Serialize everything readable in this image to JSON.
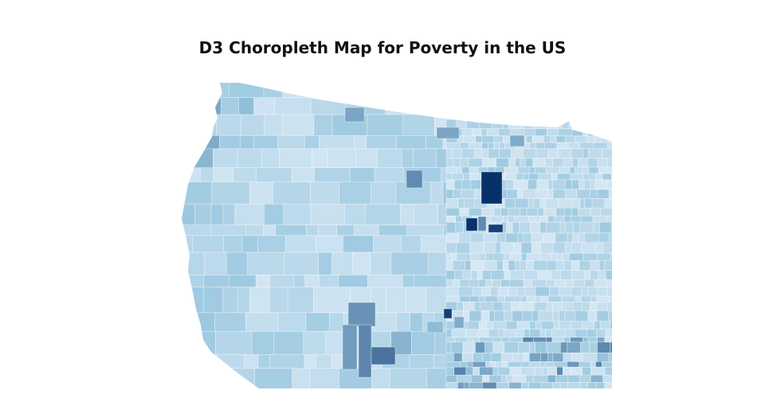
{
  "title": "D3 Choropleth Map for Poverty in the US",
  "map": {
    "type": "choropleth",
    "metric": "poverty rate",
    "region_shown": "western and central United States (map cropped)",
    "color_scale": {
      "low": "#e8f1fa",
      "mid": "#9ecae1",
      "high": "#08306b"
    },
    "background": "#ffffff",
    "border_color": "#ffffff"
  }
}
